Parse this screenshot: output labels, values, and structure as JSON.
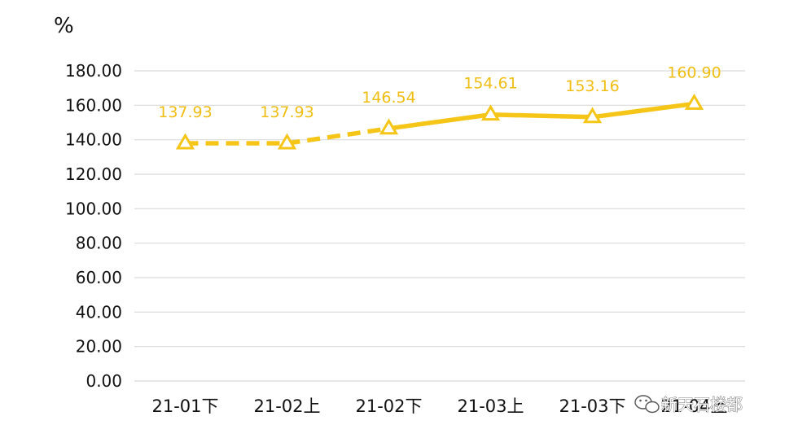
{
  "chart_data": {
    "type": "line",
    "unit_label": "%",
    "categories": [
      "21-01下",
      "21-02上",
      "21-02下",
      "21-03上",
      "21-03下",
      "21-04上"
    ],
    "series": [
      {
        "values": [
          137.93,
          137.93,
          146.54,
          154.61,
          153.16,
          160.9
        ],
        "value_labels": [
          "137.93",
          "137.93",
          "146.54",
          "154.61",
          "153.16",
          "160.90"
        ],
        "color": "#F5C518",
        "marker": "triangle-open",
        "dashed_segments_through_index": 2
      }
    ],
    "ylim": [
      0,
      180
    ],
    "yticks": [
      "0.00",
      "20.00",
      "40.00",
      "60.00",
      "80.00",
      "100.00",
      "120.00",
      "140.00",
      "160.00",
      "180.00"
    ],
    "grid": true,
    "legend": "none"
  },
  "watermark": {
    "text": "新天石楼都",
    "icon": "wechat-icon"
  }
}
